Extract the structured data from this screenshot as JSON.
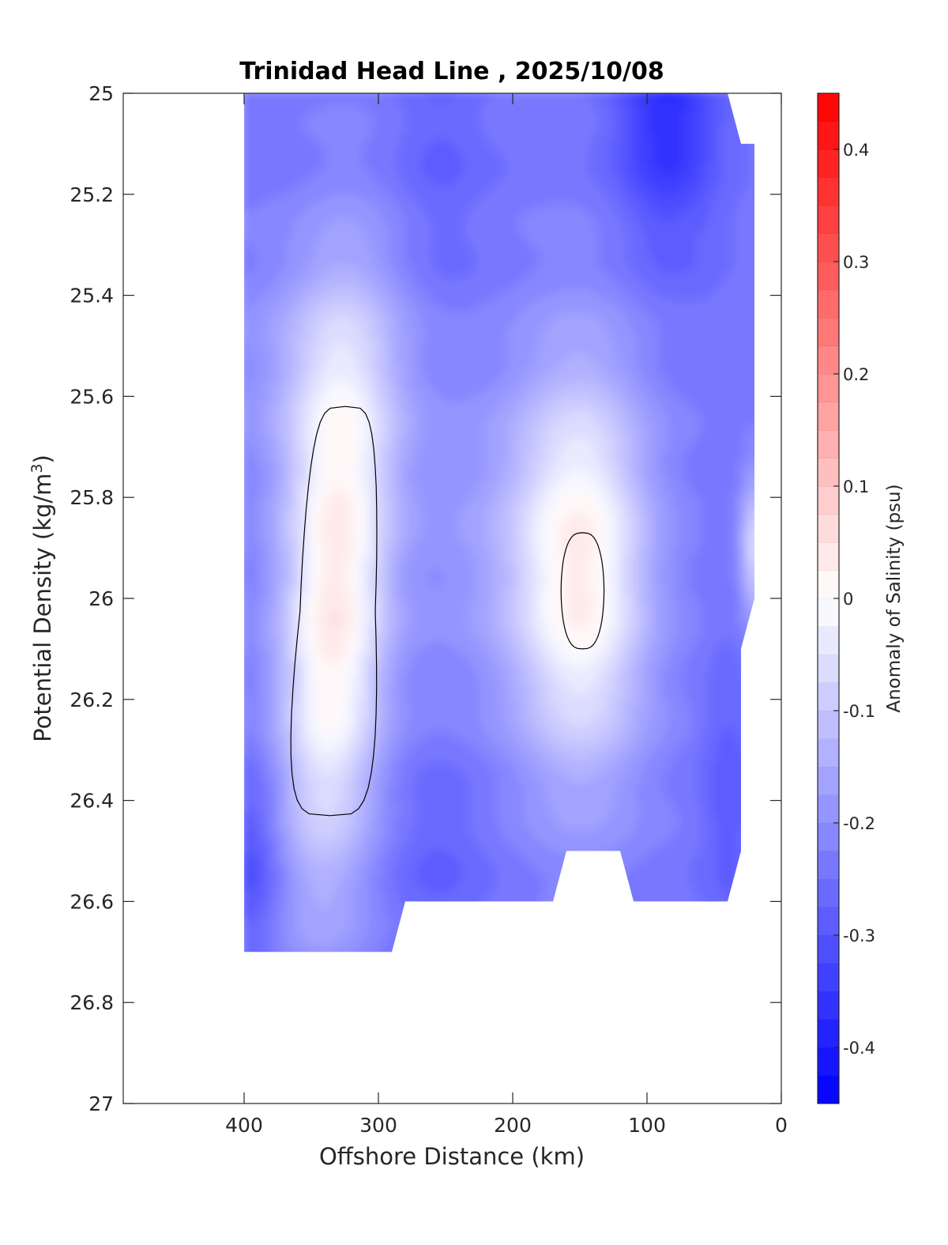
{
  "chart_data": {
    "type": "heatmap",
    "subtype": "filled-contour",
    "title": "Trinidad Head Line , 2025/10/08",
    "xlabel": "Offshore Distance (km)",
    "ylabel_main": "Potential Density (kg/m",
    "ylabel_sup": "3",
    "ylabel_tail": ")",
    "colorbar_label": "Anomaly of Salinity (psu)",
    "xlim": [
      490,
      0
    ],
    "x_reversed": true,
    "ylim": [
      25,
      27
    ],
    "y_reversed": true,
    "x_ticks": [
      "400",
      "300",
      "200",
      "100",
      "0"
    ],
    "y_ticks": [
      "25",
      "25.2",
      "25.4",
      "25.6",
      "25.8",
      "26",
      "26.2",
      "26.4",
      "26.6",
      "26.8",
      "27"
    ],
    "colorbar": {
      "range": [
        -0.45,
        0.45
      ],
      "levels": 36,
      "tick_values": [
        0.4,
        0.3,
        0.2,
        0.1,
        0,
        -0.1,
        -0.2,
        -0.3,
        -0.4
      ],
      "tick_labels": [
        "0.4",
        "0.3",
        "0.2",
        "0.1",
        "0",
        "-0.1",
        "-0.2",
        "-0.3",
        "-0.4"
      ],
      "color_min": "#0000ff",
      "color_mid": "#ffffff",
      "color_max": "#ff0000"
    },
    "grid": false,
    "grid_x_km": [
      400,
      380,
      360,
      340,
      320,
      300,
      280,
      260,
      240,
      220,
      200,
      180,
      160,
      140,
      120,
      100,
      80,
      60,
      40,
      20
    ],
    "grid_y": [
      25,
      25.1,
      25.2,
      25.3,
      25.4,
      25.5,
      25.6,
      25.7,
      25.8,
      25.9,
      26,
      26.1,
      26.2,
      26.3,
      26.4,
      26.5,
      26.6,
      26.7
    ],
    "data_coverage": [
      {
        "x": 400,
        "y_max": 26.7
      },
      {
        "x": 300,
        "y_max": 26.7
      },
      {
        "x": 290,
        "y_max": 26.7
      },
      {
        "x": 280,
        "y_max": 26.6
      },
      {
        "x": 170,
        "y_max": 26.6
      },
      {
        "x": 160,
        "y_max": 26.5
      },
      {
        "x": 120,
        "y_max": 26.5
      },
      {
        "x": 110,
        "y_max": 26.6
      },
      {
        "x": 40,
        "y_max": 26.6
      },
      {
        "x": 30,
        "y_max": 26.5
      },
      {
        "x": 30,
        "y_max": 26.1
      },
      {
        "x": 20,
        "y_max": 26.0
      },
      {
        "x": 20,
        "y_min": 25.1
      },
      {
        "x": 30,
        "y_min": 25.1
      },
      {
        "x": 40,
        "y_min": 25.0
      }
    ],
    "features": [
      {
        "name": "positive anomaly core",
        "x_center": 330,
        "y_center": 26.0,
        "max_value": 0.03,
        "zero_contour_y_range": [
          25.62,
          26.43
        ]
      },
      {
        "name": "near-zero core",
        "x_center": 148,
        "y_center": 25.98,
        "max_value": 0.0,
        "zero_contour_y_range": [
          25.87,
          26.1
        ]
      },
      {
        "name": "fresh minimum (upper)",
        "x_center": 85,
        "y_center": 25.02,
        "min_value": -0.38
      },
      {
        "name": "fresh minimum (lower left)",
        "x_center": 390,
        "y_center": 26.5,
        "min_value": -0.32
      },
      {
        "name": "fresh minimum (lower mid)",
        "x_center": 255,
        "y_center": 26.5,
        "min_value": -0.27
      },
      {
        "name": "fresh minimum (mid upper)",
        "x_center": 255,
        "y_center": 25.05,
        "min_value": -0.26
      }
    ]
  }
}
